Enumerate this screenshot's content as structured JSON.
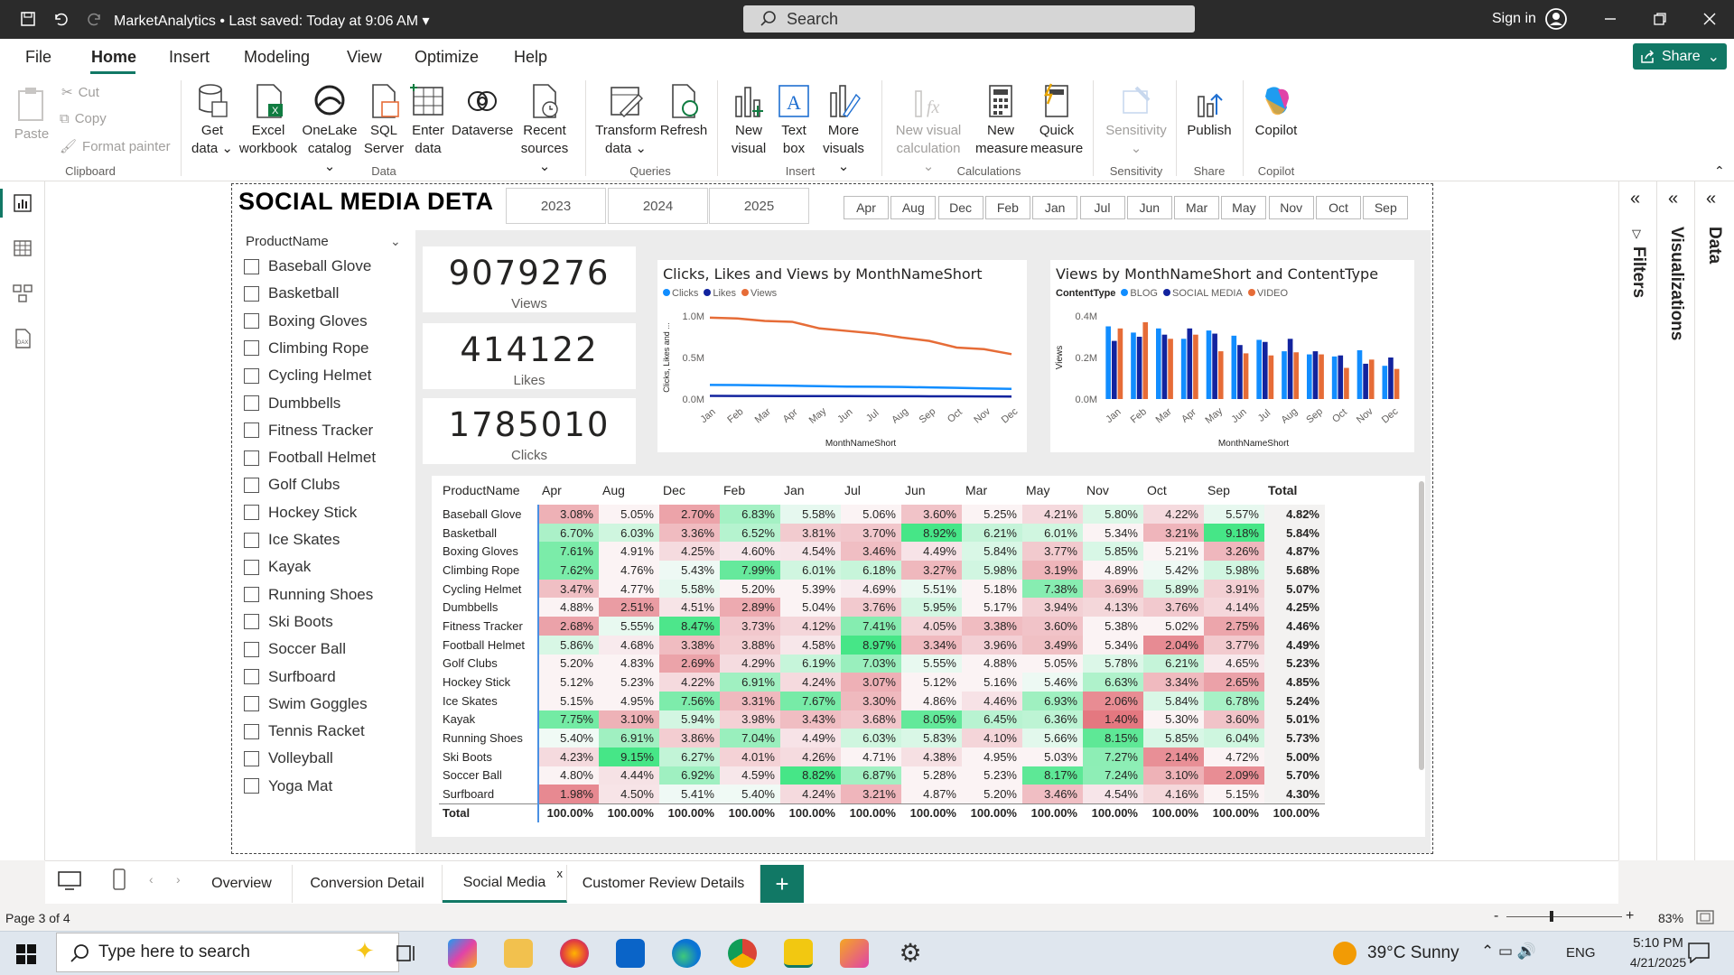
{
  "titlebar": {
    "app_title": "MarketAnalytics",
    "saved": "• Last saved: Today at 9:06 AM",
    "search": "Search",
    "sign_in": "Sign in"
  },
  "menu": {
    "file": "File",
    "home": "Home",
    "insert": "Insert",
    "modeling": "Modeling",
    "view": "View",
    "optimize": "Optimize",
    "help": "Help",
    "share": "Share"
  },
  "ribbon": {
    "paste": "Paste",
    "cut": "Cut",
    "copy": "Copy",
    "format_painter": "Format painter",
    "clipboard": "Clipboard",
    "get_data": "Get data",
    "excel": "Excel workbook",
    "onelake": "OneLake catalog",
    "sql": "SQL Server",
    "enter_data": "Enter data",
    "dataverse": "Dataverse",
    "recent": "Recent sources",
    "data_group": "Data",
    "transform": "Transform data",
    "refresh": "Refresh",
    "queries": "Queries",
    "new_visual": "New visual",
    "text_box": "Text box",
    "more_visuals": "More visuals",
    "insert_group": "Insert",
    "new_visual_calc": "New visual calculation",
    "new_measure": "New measure",
    "quick_measure": "Quick measure",
    "calculations": "Calculations",
    "sensitivity": "Sensitivity",
    "sensitivity_group": "Sensitivity",
    "publish": "Publish",
    "share_group": "Share",
    "copilot": "Copilot",
    "copilot_group": "Copilot"
  },
  "report": {
    "title": "SOCIAL MEDIA DETA",
    "years": [
      "2023",
      "2024",
      "2025"
    ],
    "months": [
      "Apr",
      "Aug",
      "Dec",
      "Feb",
      "Jan",
      "Jul",
      "Jun",
      "Mar",
      "May",
      "Nov",
      "Oct",
      "Sep"
    ],
    "slicer_title": "ProductName",
    "products": [
      "Baseball Glove",
      "Basketball",
      "Boxing Gloves",
      "Climbing Rope",
      "Cycling Helmet",
      "Dumbbells",
      "Fitness Tracker",
      "Football Helmet",
      "Golf Clubs",
      "Hockey Stick",
      "Ice Skates",
      "Kayak",
      "Running Shoes",
      "Ski Boots",
      "Soccer Ball",
      "Surfboard",
      "Swim Goggles",
      "Tennis Racket",
      "Volleyball",
      "Yoga Mat"
    ],
    "cards": [
      {
        "value": "9079276",
        "label": "Views"
      },
      {
        "value": "414122",
        "label": "Likes"
      },
      {
        "value": "1785010",
        "label": "Clicks"
      }
    ]
  },
  "colors": {
    "accent": "#117865",
    "clicks": "#118dff",
    "likes": "#12239e",
    "views": "#e66c37"
  },
  "chart_data": [
    {
      "type": "line",
      "title": "Clicks, Likes and Views by MonthNameShort",
      "xlabel": "MonthNameShort",
      "ylabel": "Clicks, Likes and ...",
      "x": [
        "Jan",
        "Feb",
        "Mar",
        "Apr",
        "May",
        "Jun",
        "Jul",
        "Aug",
        "Sep",
        "Oct",
        "Nov",
        "Dec"
      ],
      "ylim": [
        0,
        1000000
      ],
      "yticks": [
        "0.0M",
        "0.5M",
        "1.0M"
      ],
      "series": [
        {
          "name": "Clicks",
          "values": [
            170000,
            168000,
            165000,
            160000,
            155000,
            150000,
            148000,
            145000,
            140000,
            135000,
            128000,
            122000
          ]
        },
        {
          "name": "Likes",
          "values": [
            38000,
            37000,
            37000,
            36000,
            35000,
            35000,
            34000,
            34000,
            33000,
            32000,
            31000,
            30000
          ]
        },
        {
          "name": "Views",
          "values": [
            980000,
            970000,
            940000,
            930000,
            850000,
            820000,
            790000,
            740000,
            700000,
            620000,
            600000,
            540000
          ]
        }
      ]
    },
    {
      "type": "bar",
      "title": "Views by MonthNameShort and ContentType",
      "legend_title": "ContentType",
      "xlabel": "MonthNameShort",
      "ylabel": "Views",
      "categories": [
        "Jan",
        "Feb",
        "Mar",
        "Apr",
        "May",
        "Jun",
        "Jul",
        "Aug",
        "Sep",
        "Oct",
        "Nov",
        "Dec"
      ],
      "ylim": [
        0,
        400000
      ],
      "yticks": [
        "0.0M",
        "0.2M",
        "0.4M"
      ],
      "series": [
        {
          "name": "BLOG",
          "values": [
            350000,
            320000,
            340000,
            290000,
            330000,
            305000,
            285000,
            230000,
            215000,
            205000,
            235000,
            160000
          ]
        },
        {
          "name": "SOCIAL MEDIA",
          "values": [
            280000,
            300000,
            310000,
            340000,
            315000,
            260000,
            275000,
            290000,
            230000,
            210000,
            170000,
            200000
          ]
        },
        {
          "name": "VIDEO",
          "values": [
            340000,
            370000,
            290000,
            310000,
            230000,
            220000,
            210000,
            225000,
            215000,
            150000,
            190000,
            145000
          ]
        }
      ]
    }
  ],
  "matrix": {
    "header": [
      "ProductName",
      "Apr",
      "Aug",
      "Dec",
      "Feb",
      "Jan",
      "Jul",
      "Jun",
      "Mar",
      "May",
      "Nov",
      "Oct",
      "Sep",
      "Total"
    ],
    "rows": [
      [
        "Baseball Glove",
        "3.08%",
        "5.05%",
        "2.70%",
        "6.83%",
        "5.58%",
        "5.06%",
        "3.60%",
        "5.25%",
        "4.21%",
        "5.80%",
        "4.22%",
        "5.57%",
        "4.82%"
      ],
      [
        "Basketball",
        "6.70%",
        "6.03%",
        "3.36%",
        "6.52%",
        "3.81%",
        "3.70%",
        "8.92%",
        "6.21%",
        "6.01%",
        "5.34%",
        "3.21%",
        "9.18%",
        "5.84%"
      ],
      [
        "Boxing Gloves",
        "7.61%",
        "4.91%",
        "4.25%",
        "4.60%",
        "4.54%",
        "3.46%",
        "4.49%",
        "5.84%",
        "3.77%",
        "5.85%",
        "5.21%",
        "3.26%",
        "4.87%"
      ],
      [
        "Climbing Rope",
        "7.62%",
        "4.76%",
        "5.43%",
        "7.99%",
        "6.01%",
        "6.18%",
        "3.27%",
        "5.98%",
        "3.19%",
        "4.89%",
        "5.42%",
        "5.98%",
        "5.68%"
      ],
      [
        "Cycling Helmet",
        "3.47%",
        "4.77%",
        "5.58%",
        "5.20%",
        "5.39%",
        "4.69%",
        "5.51%",
        "5.18%",
        "7.38%",
        "3.69%",
        "5.89%",
        "3.91%",
        "5.07%"
      ],
      [
        "Dumbbells",
        "4.88%",
        "2.51%",
        "4.51%",
        "2.89%",
        "5.04%",
        "3.76%",
        "5.95%",
        "5.17%",
        "3.94%",
        "4.13%",
        "3.76%",
        "4.14%",
        "4.25%"
      ],
      [
        "Fitness Tracker",
        "2.68%",
        "5.55%",
        "8.47%",
        "3.73%",
        "4.12%",
        "7.41%",
        "4.05%",
        "3.38%",
        "3.60%",
        "5.38%",
        "5.02%",
        "2.75%",
        "4.46%"
      ],
      [
        "Football Helmet",
        "5.86%",
        "4.68%",
        "3.38%",
        "3.88%",
        "4.58%",
        "8.97%",
        "3.34%",
        "3.96%",
        "3.49%",
        "5.34%",
        "2.04%",
        "3.77%",
        "4.49%"
      ],
      [
        "Golf Clubs",
        "5.20%",
        "4.83%",
        "2.69%",
        "4.29%",
        "6.19%",
        "7.03%",
        "5.55%",
        "4.88%",
        "5.05%",
        "5.78%",
        "6.21%",
        "4.65%",
        "5.23%"
      ],
      [
        "Hockey Stick",
        "5.12%",
        "5.23%",
        "4.22%",
        "6.91%",
        "4.24%",
        "3.07%",
        "5.12%",
        "5.16%",
        "5.46%",
        "6.63%",
        "3.34%",
        "2.65%",
        "4.85%"
      ],
      [
        "Ice Skates",
        "5.15%",
        "4.95%",
        "7.56%",
        "3.31%",
        "7.67%",
        "3.30%",
        "4.86%",
        "4.46%",
        "6.93%",
        "2.06%",
        "5.84%",
        "6.78%",
        "5.24%"
      ],
      [
        "Kayak",
        "7.75%",
        "3.10%",
        "5.94%",
        "3.98%",
        "3.43%",
        "3.68%",
        "8.05%",
        "6.45%",
        "6.36%",
        "1.40%",
        "5.30%",
        "3.60%",
        "5.01%"
      ],
      [
        "Running Shoes",
        "5.40%",
        "6.91%",
        "3.86%",
        "7.04%",
        "4.49%",
        "6.03%",
        "5.83%",
        "4.10%",
        "5.66%",
        "8.15%",
        "5.85%",
        "6.04%",
        "5.73%"
      ],
      [
        "Ski Boots",
        "4.23%",
        "9.15%",
        "6.27%",
        "4.01%",
        "4.26%",
        "4.71%",
        "4.38%",
        "4.95%",
        "5.03%",
        "7.27%",
        "2.14%",
        "4.72%",
        "5.00%"
      ],
      [
        "Soccer Ball",
        "4.80%",
        "4.44%",
        "6.92%",
        "4.59%",
        "8.82%",
        "6.87%",
        "5.28%",
        "5.23%",
        "8.17%",
        "7.24%",
        "3.10%",
        "2.09%",
        "5.70%"
      ],
      [
        "Surfboard",
        "1.98%",
        "4.50%",
        "5.41%",
        "5.40%",
        "4.24%",
        "3.21%",
        "4.87%",
        "5.20%",
        "3.46%",
        "4.54%",
        "4.16%",
        "5.15%",
        "4.30%"
      ]
    ],
    "total": [
      "Total",
      "100.00%",
      "100.00%",
      "100.00%",
      "100.00%",
      "100.00%",
      "100.00%",
      "100.00%",
      "100.00%",
      "100.00%",
      "100.00%",
      "100.00%",
      "100.00%",
      "100.00%"
    ]
  },
  "right_panes": {
    "filters": "Filters",
    "visualizations": "Visualizations",
    "data": "Data"
  },
  "tabs": [
    "Overview",
    "Conversion Detail",
    "Social Media",
    "Customer Review Details"
  ],
  "tab_close": "x",
  "status": {
    "page": "Page 3 of 4",
    "zoom": "83%"
  },
  "taskbar": {
    "search": "Type here to search",
    "weather": "39°C  Sunny",
    "lang": "ENG",
    "time": "5:10 PM",
    "date": "4/21/2025"
  }
}
